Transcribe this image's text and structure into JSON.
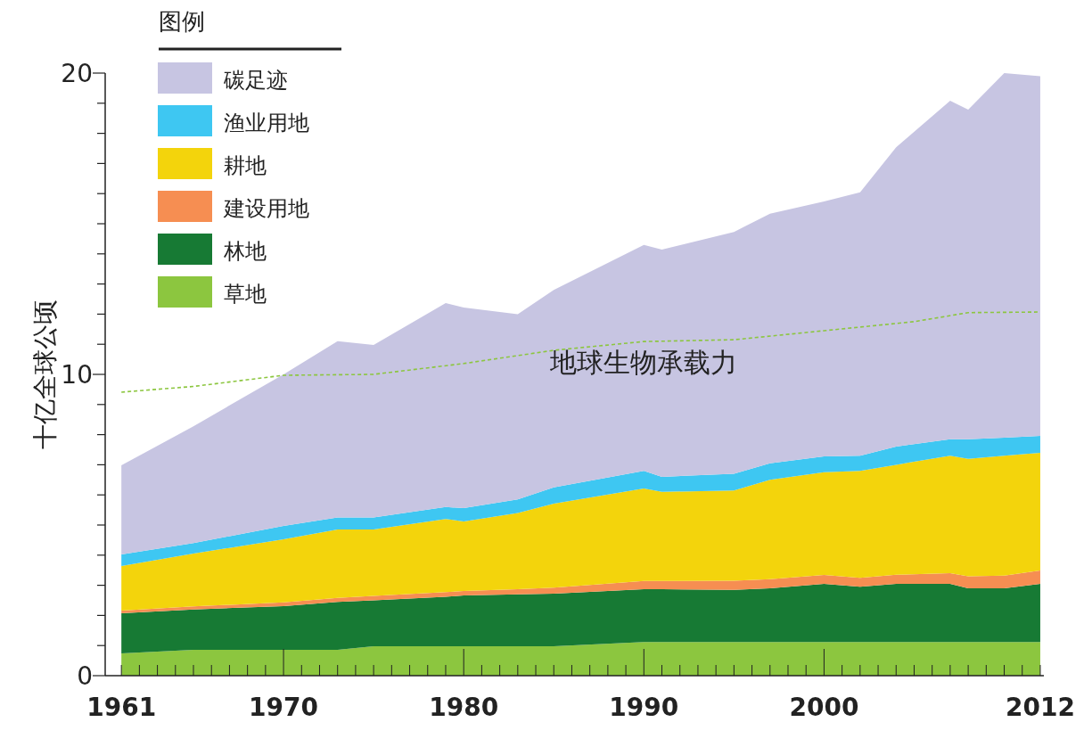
{
  "chart_data": {
    "type": "area",
    "stacked": true,
    "ylabel": "十亿全球公顷",
    "legend_title": "图例",
    "legend": "top left",
    "grid": false,
    "marker": "none",
    "x": [
      1961,
      1965,
      1970,
      1973,
      1975,
      1979,
      1980,
      1983,
      1985,
      1990,
      1991,
      1995,
      1997,
      2000,
      2002,
      2004,
      2007,
      2008,
      2010,
      2012
    ],
    "xlim": [
      1960.2,
      2012.2
    ],
    "ylim": [
      0,
      20
    ],
    "xticks": [
      {
        "value": 1961,
        "label": "1961"
      },
      {
        "value": 1962,
        "label": null
      },
      {
        "value": 1963,
        "label": null
      },
      {
        "value": 1964,
        "label": null
      },
      {
        "value": 1965,
        "label": null
      },
      {
        "value": 1966,
        "label": null
      },
      {
        "value": 1967,
        "label": null
      },
      {
        "value": 1968,
        "label": null
      },
      {
        "value": 1969,
        "label": null
      },
      1970,
      {
        "value": 1971,
        "label": null
      },
      {
        "value": 1972,
        "label": null
      },
      {
        "value": 1973,
        "label": null
      },
      {
        "value": 1974,
        "label": null
      },
      {
        "value": 1975,
        "label": null
      },
      {
        "value": 1976,
        "label": null
      },
      {
        "value": 1977,
        "label": null
      },
      {
        "value": 1978,
        "label": null
      },
      {
        "value": 1979,
        "label": null
      },
      1980,
      {
        "value": 1981,
        "label": null
      },
      {
        "value": 1982,
        "label": null
      },
      {
        "value": 1983,
        "label": null
      },
      {
        "value": 1984,
        "label": null
      },
      {
        "value": 1985,
        "label": null
      },
      {
        "value": 1986,
        "label": null
      },
      {
        "value": 1987,
        "label": null
      },
      {
        "value": 1988,
        "label": null
      },
      {
        "value": 1989,
        "label": null
      },
      1990,
      {
        "value": 1991,
        "label": null
      },
      {
        "value": 1992,
        "label": null
      },
      {
        "value": 1993,
        "label": null
      },
      {
        "value": 1994,
        "label": null
      },
      {
        "value": 1995,
        "label": null
      },
      {
        "value": 1996,
        "label": null
      },
      {
        "value": 1997,
        "label": null
      },
      {
        "value": 1998,
        "label": null
      },
      {
        "value": 1999,
        "label": null
      },
      2000,
      {
        "value": 2001,
        "label": null
      },
      {
        "value": 2002,
        "label": null
      },
      {
        "value": 2003,
        "label": null
      },
      {
        "value": 2004,
        "label": null
      },
      {
        "value": 2005,
        "label": null
      },
      {
        "value": 2006,
        "label": null
      },
      {
        "value": 2007,
        "label": null
      },
      {
        "value": 2008,
        "label": null
      },
      {
        "value": 2009,
        "label": null
      },
      {
        "value": 2010,
        "label": null
      },
      {
        "value": 2011,
        "label": null
      },
      2012
    ],
    "yticks": [
      0,
      {
        "value": 1,
        "label": null
      },
      {
        "value": 2,
        "label": null
      },
      {
        "value": 3,
        "label": null
      },
      {
        "value": 4,
        "label": null
      },
      {
        "value": 5,
        "label": null
      },
      {
        "value": 6,
        "label": null
      },
      {
        "value": 7,
        "label": null
      },
      {
        "value": 8,
        "label": null
      },
      {
        "value": 9,
        "label": null
      },
      10,
      {
        "value": 11,
        "label": null
      },
      {
        "value": 12,
        "label": null
      },
      {
        "value": 13,
        "label": null
      },
      {
        "value": 14,
        "label": null
      },
      {
        "value": 15,
        "label": null
      },
      {
        "value": 16,
        "label": null
      },
      {
        "value": 17,
        "label": null
      },
      {
        "value": 18,
        "label": null
      },
      {
        "value": 19,
        "label": null
      },
      20
    ],
    "series": [
      {
        "name": "草地",
        "color": "#8cc63f",
        "values": [
          0.74,
          0.86,
          0.86,
          0.86,
          0.98,
          0.98,
          0.98,
          0.98,
          0.98,
          1.12,
          1.12,
          1.12,
          1.12,
          1.12,
          1.12,
          1.12,
          1.12,
          1.12,
          1.12,
          1.12
        ]
      },
      {
        "name": "林地",
        "color": "#177a34",
        "values": [
          1.33,
          1.34,
          1.45,
          1.59,
          1.52,
          1.64,
          1.68,
          1.72,
          1.74,
          1.75,
          1.75,
          1.73,
          1.78,
          1.93,
          1.83,
          1.93,
          1.93,
          1.78,
          1.78,
          1.93
        ]
      },
      {
        "name": "建设用地",
        "color": "#f68e52",
        "values": [
          0.09,
          0.1,
          0.12,
          0.13,
          0.15,
          0.15,
          0.15,
          0.17,
          0.2,
          0.27,
          0.27,
          0.3,
          0.3,
          0.29,
          0.3,
          0.3,
          0.35,
          0.4,
          0.42,
          0.44
        ]
      },
      {
        "name": "耕地",
        "color": "#f3d40c",
        "values": [
          1.48,
          1.75,
          2.1,
          2.27,
          2.2,
          2.43,
          2.31,
          2.53,
          2.79,
          3.07,
          2.96,
          3.0,
          3.3,
          3.41,
          3.55,
          3.65,
          3.9,
          3.9,
          3.98,
          3.91
        ]
      },
      {
        "name": "渔业用地",
        "color": "#3ec7f2",
        "values": [
          0.38,
          0.35,
          0.44,
          0.4,
          0.4,
          0.4,
          0.44,
          0.45,
          0.54,
          0.59,
          0.5,
          0.55,
          0.55,
          0.53,
          0.5,
          0.6,
          0.55,
          0.65,
          0.6,
          0.56
        ]
      },
      {
        "name": "碳足迹",
        "color": "#c7c5e2",
        "values": [
          2.96,
          3.88,
          5.03,
          5.85,
          5.73,
          6.77,
          6.66,
          6.15,
          6.55,
          7.5,
          7.54,
          8.03,
          8.28,
          8.46,
          8.74,
          9.94,
          11.23,
          10.94,
          12.1,
          11.94
        ]
      },
      {
        "name": "地球生物承载力",
        "type": "line",
        "line_style": "dashed",
        "color": "#8cc63f",
        "x": [
          1961,
          1965,
          1970,
          1975,
          1980,
          1985,
          1990,
          1995,
          2000,
          2005,
          2008,
          2012
        ],
        "values": [
          9.41,
          9.6,
          9.97,
          10.0,
          10.36,
          10.8,
          11.09,
          11.15,
          11.45,
          11.75,
          12.05,
          12.07
        ]
      }
    ]
  }
}
